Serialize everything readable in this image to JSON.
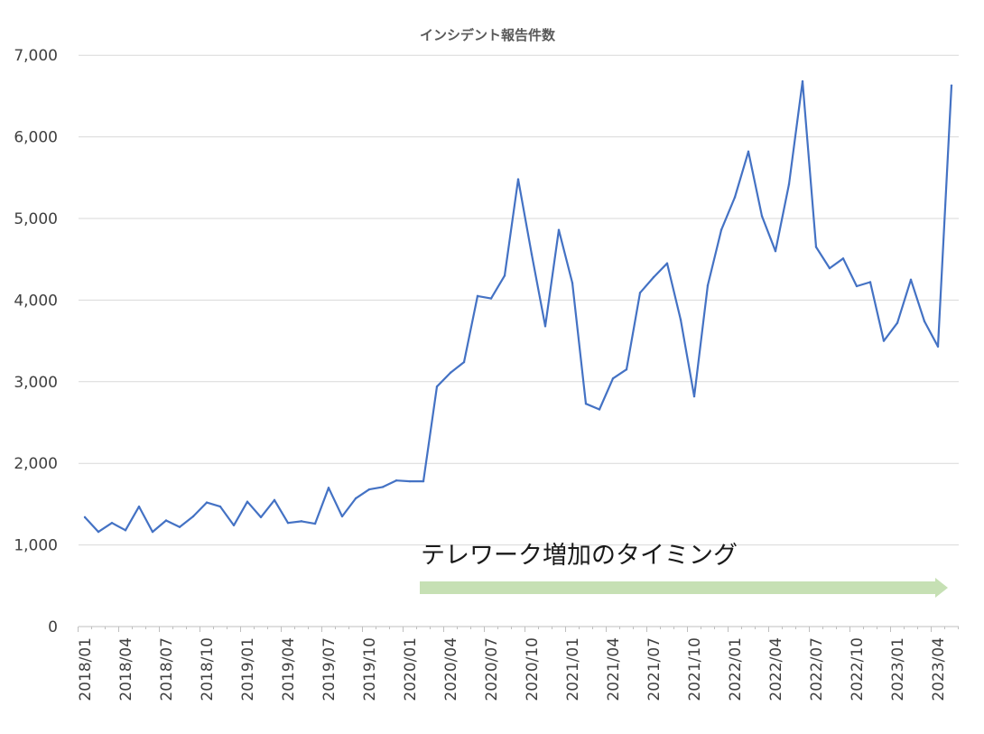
{
  "chart_data": {
    "type": "line",
    "title": "インシデント報告件数",
    "xlabel": "",
    "ylabel": "",
    "ylim": [
      0,
      7000
    ],
    "yticks": [
      "0",
      "1,000",
      "2,000",
      "3,000",
      "4,000",
      "5,000",
      "6,000",
      "7,000"
    ],
    "ytick_values": [
      0,
      1000,
      2000,
      3000,
      4000,
      5000,
      6000,
      7000
    ],
    "xtick_labels": [
      "2018/01",
      "2018/04",
      "2018/07",
      "2018/10",
      "2019/01",
      "2019/04",
      "2019/07",
      "2019/10",
      "2020/01",
      "2020/04",
      "2020/07",
      "2020/10",
      "2021/01",
      "2021/04",
      "2021/07",
      "2021/10",
      "2022/01",
      "2022/04",
      "2022/07",
      "2022/10",
      "2023/01",
      "2023/04"
    ],
    "grid": true,
    "x": [
      "2018/01",
      "2018/02",
      "2018/03",
      "2018/04",
      "2018/05",
      "2018/06",
      "2018/07",
      "2018/08",
      "2018/09",
      "2018/10",
      "2018/11",
      "2018/12",
      "2019/01",
      "2019/02",
      "2019/03",
      "2019/04",
      "2019/05",
      "2019/06",
      "2019/07",
      "2019/08",
      "2019/09",
      "2019/10",
      "2019/11",
      "2019/12",
      "2020/01",
      "2020/02",
      "2020/03",
      "2020/04",
      "2020/05",
      "2020/06",
      "2020/07",
      "2020/08",
      "2020/09",
      "2020/10",
      "2020/11",
      "2020/12",
      "2021/01",
      "2021/02",
      "2021/03",
      "2021/04",
      "2021/05",
      "2021/06",
      "2021/07",
      "2021/08",
      "2021/09",
      "2021/10",
      "2021/11",
      "2021/12",
      "2022/01",
      "2022/02",
      "2022/03",
      "2022/04",
      "2022/05",
      "2022/06",
      "2022/07",
      "2022/08",
      "2022/09",
      "2022/10",
      "2022/11",
      "2022/12",
      "2023/01",
      "2023/02",
      "2023/03",
      "2023/04",
      "2023/05"
    ],
    "series": [
      {
        "color": "#4472c4",
        "values": [
          1340,
          1160,
          1270,
          1180,
          1470,
          1160,
          1300,
          1220,
          1350,
          1520,
          1470,
          1240,
          1530,
          1340,
          1550,
          1270,
          1290,
          1260,
          1700,
          1350,
          1570,
          1680,
          1710,
          1790,
          1780,
          1780,
          2940,
          3110,
          3240,
          4050,
          4020,
          4300,
          5480,
          4560,
          3680,
          4860,
          4210,
          2730,
          2660,
          3040,
          3150,
          4090,
          4280,
          4450,
          3760,
          2820,
          4180,
          4860,
          5260,
          5820,
          5030,
          4600,
          5420,
          6680,
          4650,
          4390,
          4510,
          4170,
          4220,
          3500,
          3720,
          4250,
          3740,
          3430,
          6630
        ]
      }
    ],
    "annotation": {
      "text": "テレワーク増加のタイミング",
      "arrow_color": "#c6e0b4",
      "start": "2020/02",
      "end": "2023/05"
    }
  }
}
